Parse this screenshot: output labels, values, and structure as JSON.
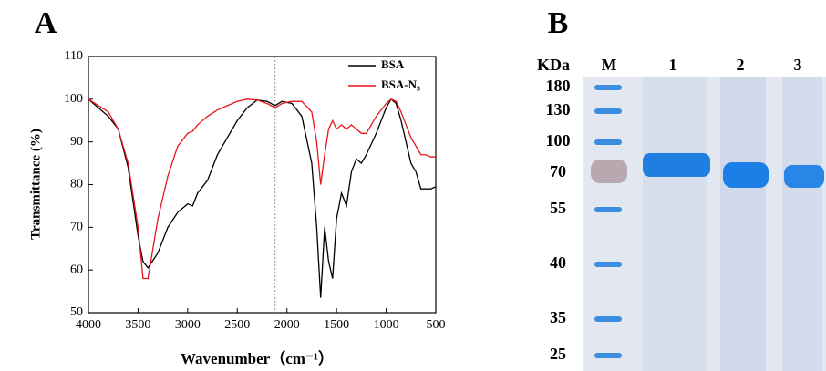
{
  "chart_data": {
    "type": "line",
    "title": "A",
    "x_label": "Wavenumber（cm⁻¹）",
    "y_label": "Transmittance (%)",
    "xlim": [
      4000,
      500
    ],
    "xticks": [
      4000,
      3500,
      3000,
      2500,
      2000,
      1500,
      1000,
      500
    ],
    "ylim": [
      50,
      110
    ],
    "yticks": [
      50,
      60,
      70,
      80,
      90,
      100,
      110
    ],
    "reference_line": 2120,
    "legend": "top-right",
    "x": [
      4000,
      3900,
      3800,
      3700,
      3600,
      3500,
      3450,
      3400,
      3300,
      3200,
      3100,
      3000,
      2950,
      2900,
      2800,
      2700,
      2600,
      2500,
      2400,
      2300,
      2200,
      2120,
      2050,
      1950,
      1850,
      1750,
      1700,
      1660,
      1620,
      1580,
      1540,
      1500,
      1450,
      1400,
      1350,
      1300,
      1250,
      1200,
      1100,
      1000,
      950,
      900,
      850,
      800,
      750,
      700,
      650,
      600,
      550,
      500
    ],
    "series": [
      {
        "name": "BSA",
        "color": "#000000",
        "values": [
          100,
          98,
          96,
          93,
          84,
          68,
          62,
          60.5,
          64,
          70,
          73.5,
          75.5,
          75,
          78,
          81,
          87,
          91,
          95,
          98,
          99.8,
          99.5,
          98.5,
          99.5,
          99,
          96,
          85,
          70,
          53.5,
          70,
          62,
          58,
          72,
          78,
          75,
          83,
          86,
          85,
          87,
          92,
          98,
          100,
          99,
          95,
          90,
          85,
          83,
          79,
          79,
          79,
          79.5
        ]
      },
      {
        "name": "BSA-N₃",
        "color": "#e8141b",
        "values": [
          100,
          98.5,
          97,
          93,
          85,
          70,
          58,
          58,
          72,
          82,
          89,
          92,
          92.5,
          94,
          96,
          97.5,
          98.5,
          99.5,
          100,
          99.8,
          99,
          98,
          99,
          99.5,
          99.5,
          97,
          90,
          80,
          87,
          93,
          95,
          93,
          94,
          93,
          94,
          93,
          92,
          92,
          96,
          99,
          100,
          99.5,
          97,
          94,
          91,
          89,
          87,
          87,
          86.5,
          86.5
        ]
      }
    ]
  },
  "gel": {
    "label": "B",
    "unit": "KDa",
    "lanes": [
      "M",
      "1",
      "2",
      "3"
    ],
    "markers": [
      180,
      130,
      100,
      70,
      55,
      40,
      35,
      25
    ]
  }
}
